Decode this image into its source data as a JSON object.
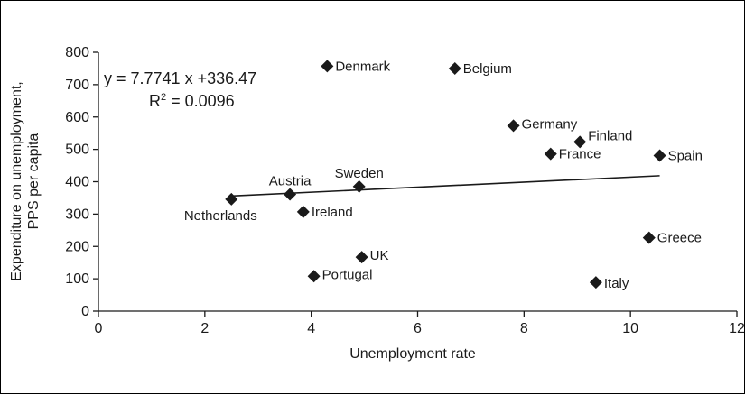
{
  "chart_data": {
    "type": "scatter",
    "xlabel": "Unemployment rate",
    "ylabel_lines": [
      "Expenditure on unemployment,",
      "PPS per capita"
    ],
    "xlim": [
      0,
      12
    ],
    "ylim": [
      0,
      800
    ],
    "xticks": [
      "0",
      "2",
      "4",
      "6",
      "8",
      "10",
      "12"
    ],
    "yticks": [
      "0",
      "100",
      "200",
      "300",
      "400",
      "500",
      "600",
      "700",
      "800"
    ],
    "grid": false,
    "points": [
      {
        "label": "Denmark",
        "x": 4.3,
        "y": 757
      },
      {
        "label": "Belgium",
        "x": 6.7,
        "y": 750
      },
      {
        "label": "Germany",
        "x": 7.8,
        "y": 573
      },
      {
        "label": "Finland",
        "x": 9.05,
        "y": 523
      },
      {
        "label": "France",
        "x": 8.5,
        "y": 486
      },
      {
        "label": "Spain",
        "x": 10.55,
        "y": 481
      },
      {
        "label": "Austria",
        "x": 3.6,
        "y": 361
      },
      {
        "label": "Sweden",
        "x": 4.9,
        "y": 385
      },
      {
        "label": "Netherlands",
        "x": 2.5,
        "y": 346
      },
      {
        "label": "Ireland",
        "x": 3.85,
        "y": 307
      },
      {
        "label": "Greece",
        "x": 10.35,
        "y": 227
      },
      {
        "label": "UK",
        "x": 4.95,
        "y": 167
      },
      {
        "label": "Portugal",
        "x": 4.05,
        "y": 108
      },
      {
        "label": "Italy",
        "x": 9.35,
        "y": 89
      }
    ],
    "trendline": {
      "x": [
        2.5,
        10.55
      ],
      "slope": 7.7741,
      "intercept": 336.47
    },
    "equation": "y = 7.7741  x +336.47",
    "r2_prefix": "R",
    "r2_sup": "2",
    "r2_value": " = 0.0096",
    "marker_color": "#1a1a1a"
  }
}
